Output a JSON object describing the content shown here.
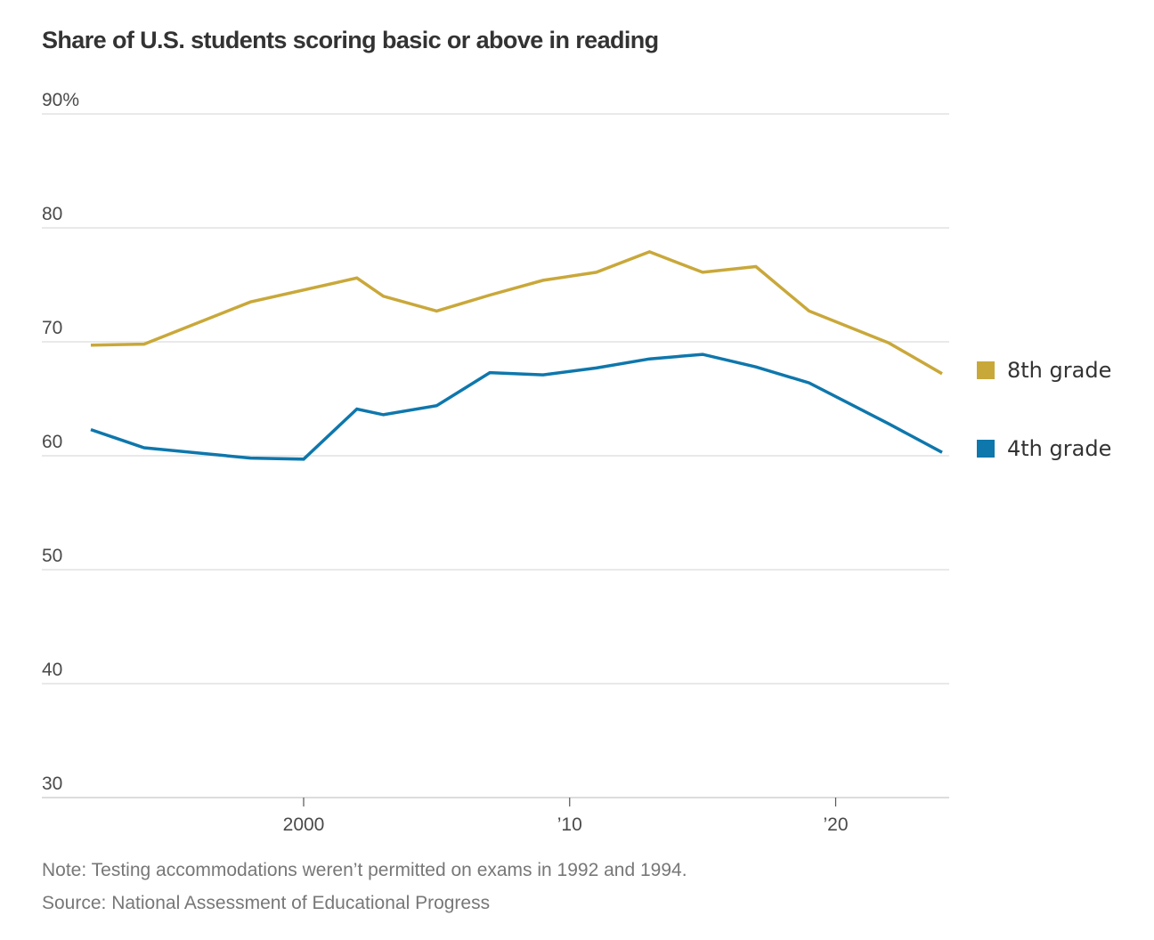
{
  "chart_data": {
    "type": "line",
    "title": "Share of U.S. students scoring basic or above in reading",
    "xlabel": "",
    "ylabel": "",
    "ylim": [
      30,
      90
    ],
    "xlim": [
      1992,
      2024
    ],
    "y_ticks": [
      {
        "value": 90,
        "label": "90%"
      },
      {
        "value": 80,
        "label": "80"
      },
      {
        "value": 70,
        "label": "70"
      },
      {
        "value": 60,
        "label": "60"
      },
      {
        "value": 50,
        "label": "50"
      },
      {
        "value": 40,
        "label": "40"
      },
      {
        "value": 30,
        "label": "30"
      }
    ],
    "x_ticks": [
      {
        "value": 2000,
        "label": "2000"
      },
      {
        "value": 2010,
        "label": "’10"
      },
      {
        "value": 2020,
        "label": "’20"
      }
    ],
    "grid": true,
    "legend_position": "right",
    "series": [
      {
        "name": "8th grade",
        "color": "#c9a83a",
        "x": [
          1992,
          1994,
          1998,
          2002,
          2003,
          2005,
          2007,
          2009,
          2011,
          2013,
          2015,
          2017,
          2019,
          2022,
          2024
        ],
        "values": [
          69.7,
          69.8,
          73.5,
          75.6,
          74.0,
          72.7,
          74.1,
          75.4,
          76.1,
          77.9,
          76.1,
          76.6,
          72.7,
          69.9,
          67.2
        ]
      },
      {
        "name": "4th grade",
        "color": "#0e77ac",
        "x": [
          1992,
          1994,
          1998,
          2000,
          2002,
          2003,
          2005,
          2007,
          2009,
          2011,
          2013,
          2015,
          2017,
          2019,
          2022,
          2024
        ],
        "values": [
          62.3,
          60.7,
          59.8,
          59.7,
          64.1,
          63.6,
          64.4,
          67.3,
          67.1,
          67.7,
          68.5,
          68.9,
          67.8,
          66.4,
          62.8,
          60.3
        ]
      }
    ]
  },
  "footer": {
    "note": "Note: Testing accommodations weren’t permitted on exams in 1992 and 1994.",
    "source": "Source: National Assessment of Educational Progress"
  }
}
